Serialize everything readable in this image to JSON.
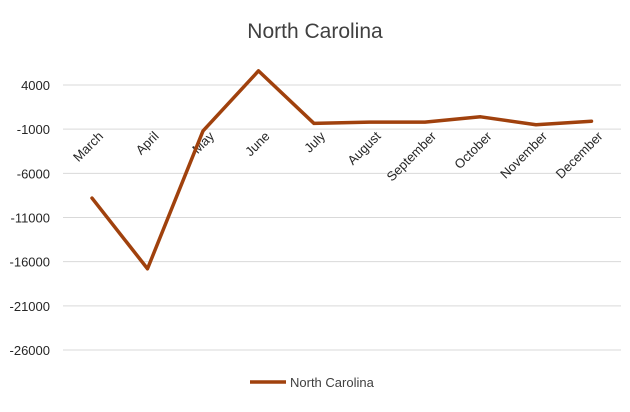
{
  "chart_data": {
    "type": "line",
    "title": "North Carolina",
    "xlabel": "",
    "ylabel": "",
    "categories": [
      "March",
      "April",
      "May",
      "June",
      "July",
      "August",
      "September",
      "October",
      "November",
      "December"
    ],
    "series": [
      {
        "name": "North Carolina",
        "color": "#A0410D",
        "values": [
          -8800,
          -16800,
          -1200,
          5600,
          -350,
          -200,
          -200,
          400,
          -500,
          -100
        ]
      }
    ],
    "ylim": [
      -26000,
      4000
    ],
    "yticks": [
      4000,
      -1000,
      -6000,
      -11000,
      -16000,
      -21000,
      -26000
    ],
    "ytick_labels": [
      "4000",
      "-1000",
      "-6000",
      "-11000",
      "-16000",
      "-21000",
      "-26000"
    ],
    "grid": true,
    "legend": "bottom"
  }
}
